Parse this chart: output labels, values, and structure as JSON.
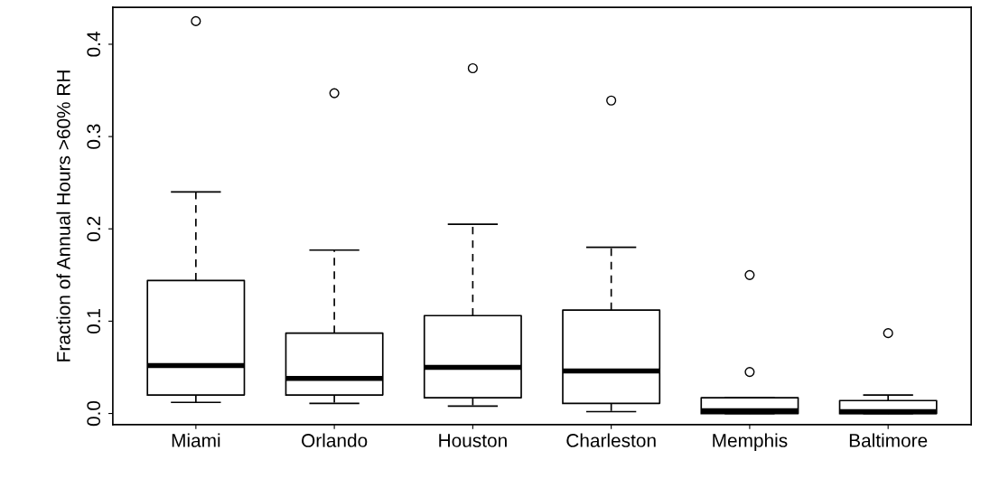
{
  "chart_data": {
    "type": "box",
    "ylabel": "Fraction of Annual Hours >60% RH",
    "categories": [
      "Miami",
      "Orlando",
      "Houston",
      "Charleston",
      "Memphis",
      "Baltimore"
    ],
    "boxes": [
      {
        "low": 0.012,
        "q1": 0.02,
        "median": 0.052,
        "q3": 0.144,
        "high": 0.24,
        "outliers": [
          0.425
        ]
      },
      {
        "low": 0.011,
        "q1": 0.02,
        "median": 0.038,
        "q3": 0.087,
        "high": 0.177,
        "outliers": [
          0.347
        ]
      },
      {
        "low": 0.008,
        "q1": 0.017,
        "median": 0.05,
        "q3": 0.106,
        "high": 0.205,
        "outliers": [
          0.374
        ]
      },
      {
        "low": 0.002,
        "q1": 0.011,
        "median": 0.046,
        "q3": 0.112,
        "high": 0.18,
        "outliers": [
          0.339
        ]
      },
      {
        "low": 0.0,
        "q1": 0.0,
        "median": 0.003,
        "q3": 0.017,
        "high": 0.017,
        "outliers": [
          0.045,
          0.15
        ]
      },
      {
        "low": 0.0,
        "q1": 0.0,
        "median": 0.002,
        "q3": 0.014,
        "high": 0.02,
        "outliers": [
          0.087
        ]
      }
    ],
    "ylim": [
      -0.012,
      0.44
    ],
    "yticks": [
      {
        "value": 0,
        "label": "0.0"
      },
      0.1,
      0.2,
      0.3,
      0.4
    ],
    "grid": false
  }
}
